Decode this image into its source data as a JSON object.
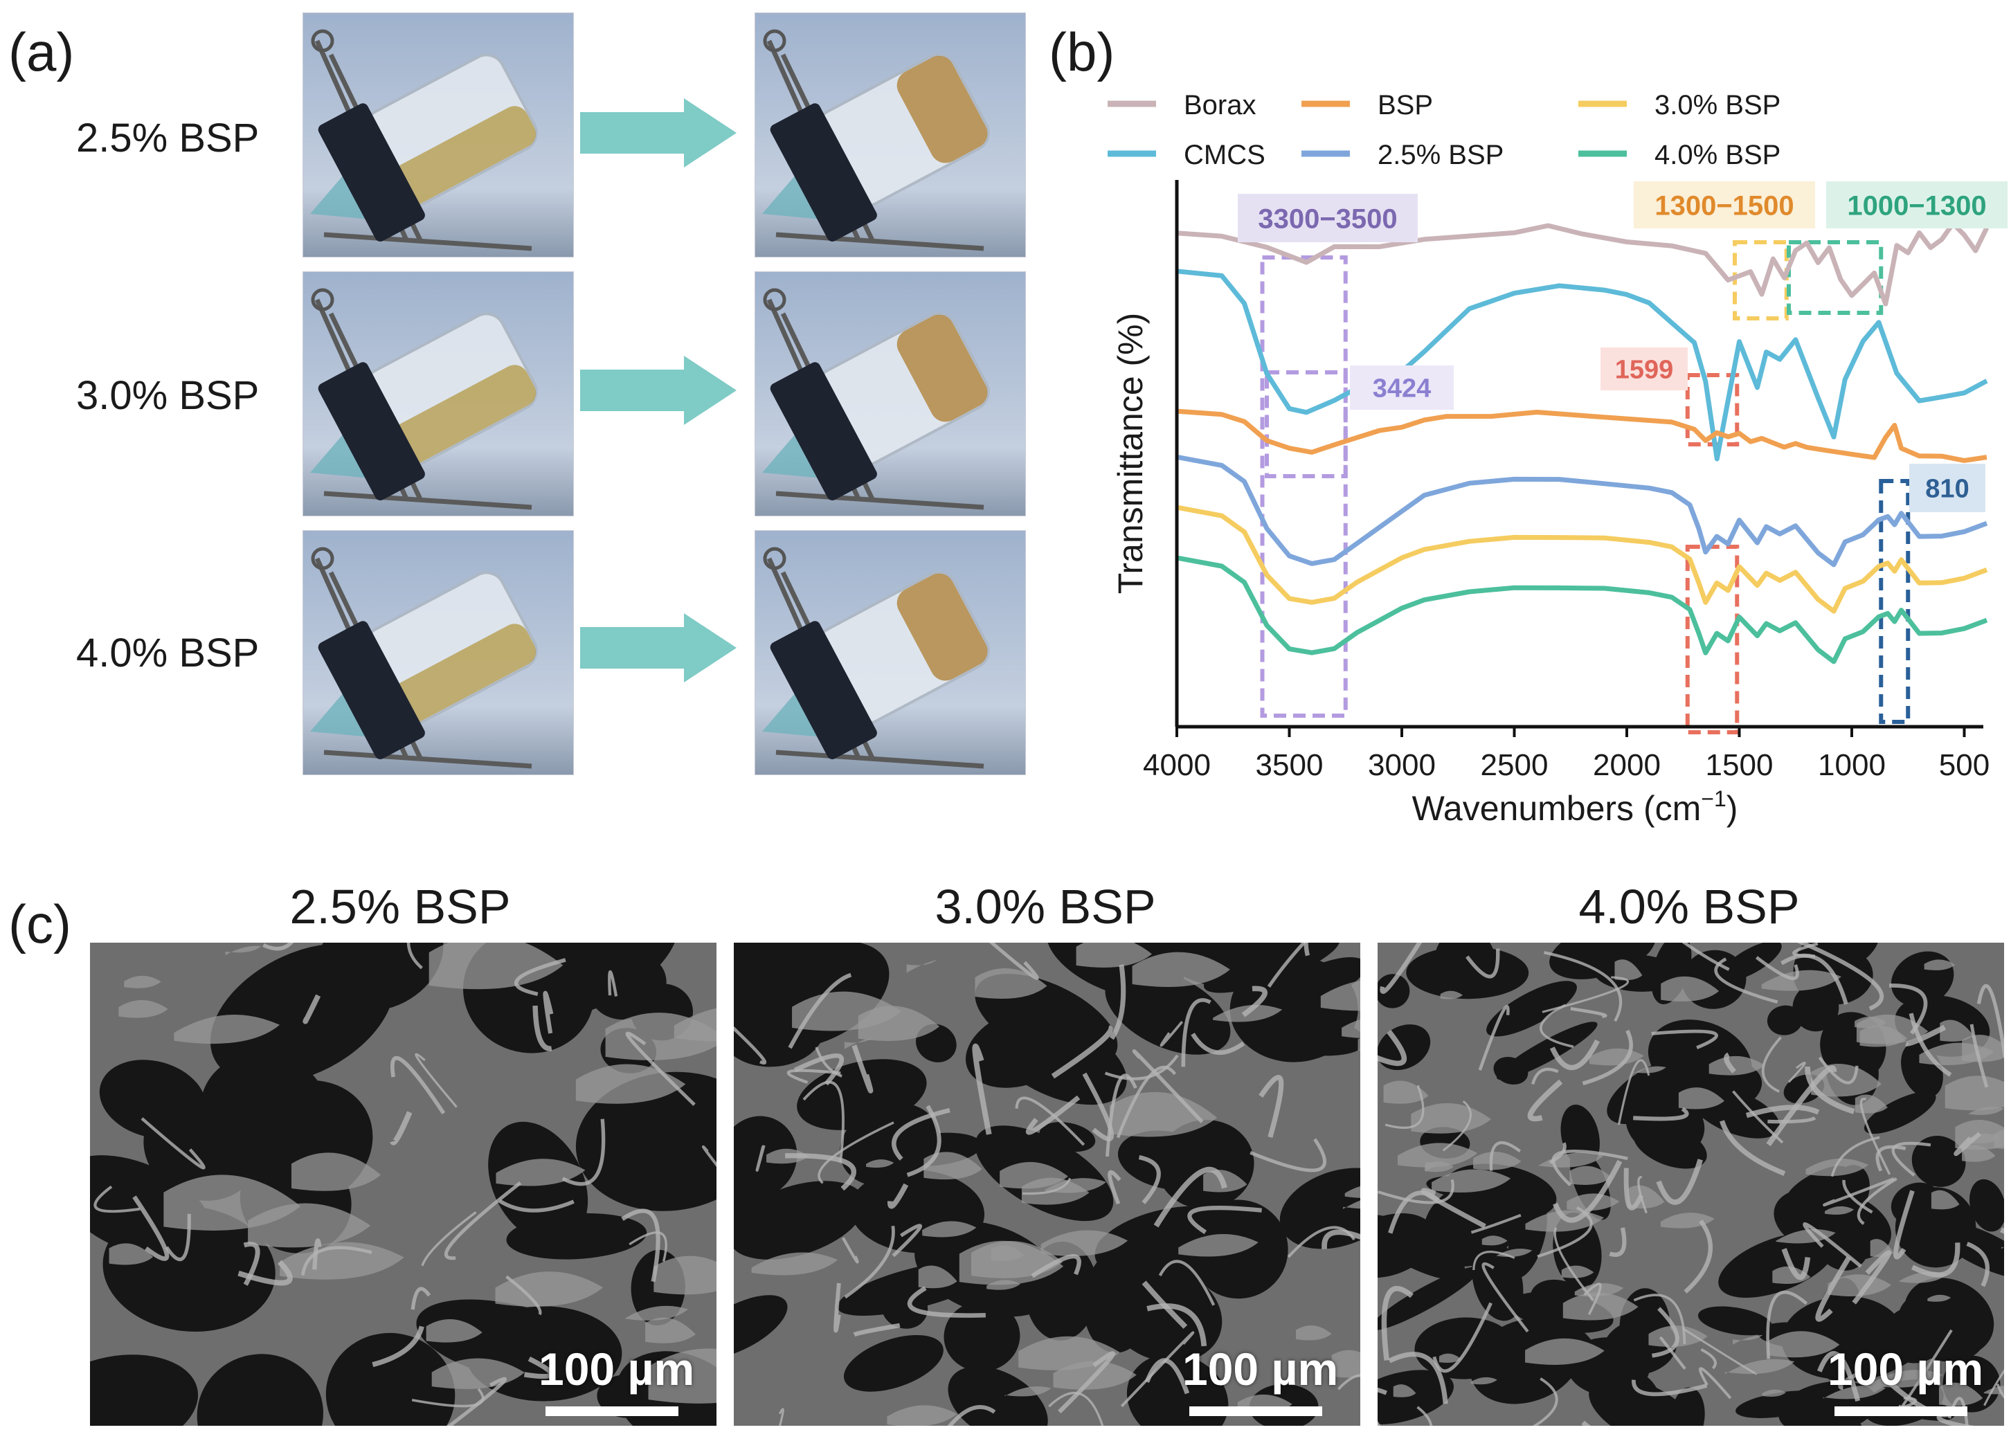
{
  "panel_a": {
    "letter": "(a)",
    "rows": [
      {
        "label": "2.5% BSP"
      },
      {
        "label": "3.0% BSP"
      },
      {
        "label": "4.0% BSP"
      }
    ],
    "arrow_color": "#7fcbc6"
  },
  "panel_b": {
    "letter": "(b)",
    "chart_data": {
      "type": "line",
      "title": "",
      "xlabel": "Wavenumbers (cm-1)",
      "ylabel": "Transmittance (%)",
      "xlim": [
        4000,
        400
      ],
      "x_reversed": true,
      "x_ticks": [
        "4000",
        "3500",
        "3000",
        "2500",
        "2000",
        "1500",
        "1000",
        "500"
      ],
      "legend": [
        {
          "name": "Borax",
          "color": "#c9b3b7"
        },
        {
          "name": "BSP",
          "color": "#f0a050"
        },
        {
          "name": "3.0% BSP",
          "color": "#f5cc60"
        },
        {
          "name": "CMCS",
          "color": "#5dbad8"
        },
        {
          "name": "2.5% BSP",
          "color": "#7ea6db"
        },
        {
          "name": "4.0% BSP",
          "color": "#4cbf9c"
        }
      ],
      "legend_position": "top",
      "series": [
        {
          "name": "Borax",
          "color": "#c9b3b7",
          "x": [
            4000,
            3800,
            3600,
            3424,
            3300,
            3100,
            2900,
            2700,
            2500,
            2350,
            2200,
            2000,
            1800,
            1650,
            1550,
            1450,
            1400,
            1350,
            1300,
            1250,
            1200,
            1150,
            1100,
            1050,
            1000,
            950,
            900,
            850,
            800,
            750,
            700,
            650,
            600,
            550,
            500,
            450,
            400
          ],
          "y": [
            0.02,
            0.03,
            0.06,
            0.1,
            0.06,
            0.06,
            0.04,
            0.03,
            0.02,
            0.0,
            0.02,
            0.04,
            0.05,
            0.07,
            0.14,
            0.12,
            0.18,
            0.09,
            0.14,
            0.07,
            0.05,
            0.1,
            0.06,
            0.14,
            0.18,
            0.15,
            0.12,
            0.2,
            0.05,
            0.07,
            0.02,
            0.06,
            0.04,
            0.0,
            0.03,
            0.07,
            0.01
          ]
        },
        {
          "name": "CMCS",
          "color": "#5dbad8",
          "x": [
            4000,
            3800,
            3700,
            3600,
            3500,
            3424,
            3300,
            3200,
            3100,
            3000,
            2900,
            2700,
            2500,
            2300,
            2100,
            2000,
            1900,
            1800,
            1700,
            1650,
            1599,
            1550,
            1500,
            1420,
            1380,
            1320,
            1250,
            1150,
            1080,
            1030,
            950,
            880,
            800,
            700,
            600,
            500,
            400
          ],
          "y": [
            0.12,
            0.13,
            0.2,
            0.38,
            0.47,
            0.48,
            0.45,
            0.42,
            0.4,
            0.38,
            0.33,
            0.22,
            0.18,
            0.16,
            0.17,
            0.18,
            0.2,
            0.25,
            0.3,
            0.4,
            0.6,
            0.45,
            0.3,
            0.42,
            0.33,
            0.35,
            0.3,
            0.45,
            0.55,
            0.4,
            0.3,
            0.25,
            0.38,
            0.45,
            0.44,
            0.43,
            0.4
          ]
        },
        {
          "name": "BSP",
          "color": "#f0a050",
          "x": [
            4000,
            3800,
            3700,
            3600,
            3500,
            3400,
            3300,
            3200,
            3100,
            3000,
            2900,
            2800,
            2600,
            2400,
            2200,
            2000,
            1800,
            1700,
            1650,
            1600,
            1550,
            1500,
            1450,
            1400,
            1350,
            1300,
            1250,
            1200,
            1100,
            1000,
            900,
            850,
            810,
            780,
            700,
            600,
            500,
            400
          ],
          "y": [
            0.48,
            0.49,
            0.51,
            0.56,
            0.58,
            0.59,
            0.57,
            0.55,
            0.53,
            0.52,
            0.5,
            0.49,
            0.49,
            0.48,
            0.49,
            0.5,
            0.51,
            0.53,
            0.56,
            0.54,
            0.55,
            0.54,
            0.56,
            0.55,
            0.56,
            0.57,
            0.56,
            0.57,
            0.58,
            0.59,
            0.6,
            0.55,
            0.52,
            0.58,
            0.6,
            0.6,
            0.61,
            0.6
          ]
        },
        {
          "name": "2.5% BSP",
          "color": "#7ea6db",
          "x": [
            4000,
            3800,
            3700,
            3600,
            3500,
            3400,
            3300,
            3200,
            3100,
            3000,
            2900,
            2700,
            2500,
            2300,
            2100,
            1900,
            1800,
            1720,
            1680,
            1650,
            1600,
            1550,
            1500,
            1420,
            1380,
            1320,
            1250,
            1150,
            1080,
            1030,
            950,
            880,
            840,
            810,
            780,
            700,
            600,
            500,
            400
          ],
          "y": [
            0.6,
            0.62,
            0.66,
            0.78,
            0.85,
            0.87,
            0.86,
            0.82,
            0.78,
            0.74,
            0.7,
            0.67,
            0.66,
            0.66,
            0.67,
            0.68,
            0.69,
            0.72,
            0.78,
            0.84,
            0.8,
            0.82,
            0.76,
            0.82,
            0.78,
            0.8,
            0.78,
            0.85,
            0.88,
            0.82,
            0.8,
            0.76,
            0.75,
            0.77,
            0.74,
            0.8,
            0.8,
            0.79,
            0.77
          ]
        },
        {
          "name": "3.0% BSP",
          "color": "#f5cc60",
          "x": [
            4000,
            3800,
            3700,
            3600,
            3500,
            3400,
            3300,
            3200,
            3100,
            3000,
            2900,
            2700,
            2500,
            2300,
            2100,
            1900,
            1800,
            1720,
            1680,
            1650,
            1600,
            1550,
            1500,
            1420,
            1380,
            1320,
            1250,
            1150,
            1080,
            1030,
            950,
            880,
            840,
            810,
            780,
            700,
            600,
            500,
            400
          ],
          "y": [
            0.73,
            0.75,
            0.79,
            0.9,
            0.96,
            0.97,
            0.96,
            0.92,
            0.89,
            0.86,
            0.84,
            0.82,
            0.81,
            0.81,
            0.81,
            0.82,
            0.83,
            0.86,
            0.92,
            0.97,
            0.92,
            0.94,
            0.88,
            0.93,
            0.9,
            0.92,
            0.9,
            0.97,
            1.0,
            0.94,
            0.92,
            0.88,
            0.87,
            0.89,
            0.86,
            0.92,
            0.92,
            0.91,
            0.89
          ]
        },
        {
          "name": "4.0% BSP",
          "color": "#4cbf9c",
          "x": [
            4000,
            3800,
            3700,
            3600,
            3500,
            3400,
            3300,
            3200,
            3100,
            3000,
            2900,
            2700,
            2500,
            2300,
            2100,
            1900,
            1800,
            1720,
            1680,
            1650,
            1600,
            1550,
            1500,
            1420,
            1380,
            1320,
            1250,
            1150,
            1080,
            1030,
            950,
            880,
            840,
            810,
            780,
            700,
            600,
            500,
            400
          ],
          "y": [
            0.86,
            0.88,
            0.92,
            1.03,
            1.09,
            1.1,
            1.09,
            1.05,
            1.02,
            0.99,
            0.97,
            0.95,
            0.94,
            0.94,
            0.94,
            0.95,
            0.96,
            0.99,
            1.05,
            1.1,
            1.05,
            1.07,
            1.01,
            1.06,
            1.03,
            1.05,
            1.03,
            1.1,
            1.13,
            1.07,
            1.05,
            1.01,
            1.0,
            1.02,
            0.99,
            1.05,
            1.05,
            1.04,
            1.02
          ]
        }
      ],
      "annotations": [
        {
          "text": "3300−3500",
          "color": "#7b68b0",
          "bg": "#e6e1f2",
          "box_color": "#b39be0",
          "x_range": [
            3620,
            3250
          ]
        },
        {
          "text": "1300−1500",
          "color": "#e08a2c",
          "bg": "#fbf0d8",
          "box_color": "#f5cc60",
          "x_range": [
            1520,
            1290
          ]
        },
        {
          "text": "1000−1300",
          "color": "#2ea37e",
          "bg": "#dcf2e9",
          "box_color": "#4cbf9c",
          "x_range": [
            1280,
            870
          ]
        },
        {
          "text": "3424",
          "color": "#8a7fd0",
          "bg": "#ece8f8",
          "box_color": "#b39be0"
        },
        {
          "text": "1599",
          "color": "#e0655a",
          "bg": "#fbe1de",
          "box_color": "#e8705e"
        },
        {
          "text": "810",
          "color": "#2e5f94",
          "bg": "#d7e5f2",
          "box_color": "#2a6099"
        }
      ]
    }
  },
  "panel_c": {
    "letter": "(c)",
    "images": [
      {
        "title": "2.5% BSP",
        "scale": "100 µm"
      },
      {
        "title": "3.0% BSP",
        "scale": "100 µm"
      },
      {
        "title": "4.0% BSP",
        "scale": "100 µm"
      }
    ]
  }
}
